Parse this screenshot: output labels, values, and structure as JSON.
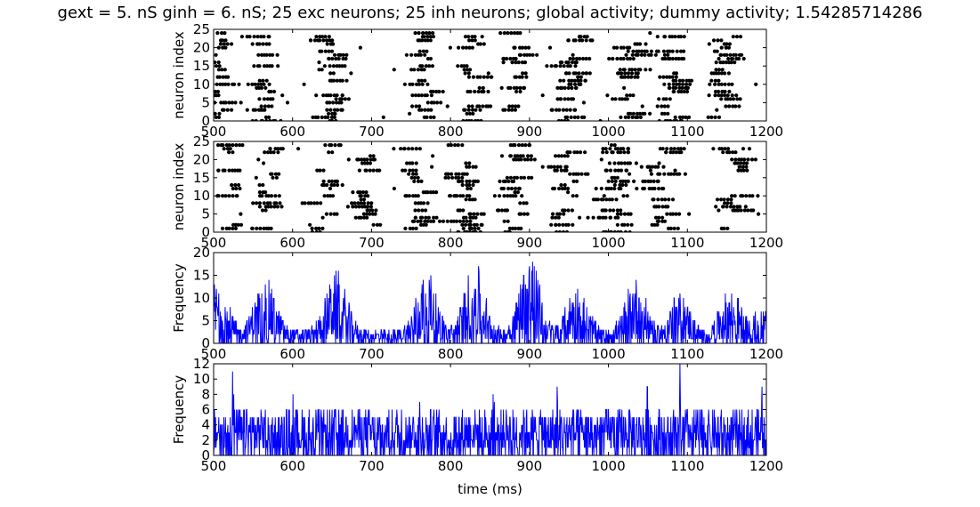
{
  "figure": {
    "title": "gext = 5. nS ginh = 6. nS; 25 exc neurons; 25 inh neurons; global activity; dummy activity; 1.54285714286",
    "xlabel": "time (ms)"
  },
  "colors": {
    "spike": "#000000",
    "rate": "#0000ff",
    "axes": "#000000",
    "background": "#ffffff"
  },
  "chart_data": [
    {
      "type": "scatter",
      "ylabel": "neuron index",
      "xlim": [
        500,
        1200
      ],
      "ylim": [
        0,
        25
      ],
      "xticks": [
        500,
        600,
        700,
        800,
        900,
        1000,
        1100,
        1200
      ],
      "yticks": [
        0,
        5,
        10,
        15,
        20,
        25
      ],
      "grid": false,
      "marker": "dot",
      "series": [
        {
          "neuron_count": 25,
          "time_range": [
            500,
            1200
          ],
          "bursts_ms": [
            505,
            565,
            650,
            770,
            830,
            890,
            955,
            1030,
            1085,
            1150
          ]
        }
      ]
    },
    {
      "type": "scatter",
      "ylabel": "neuron index",
      "xlim": [
        500,
        1200
      ],
      "ylim": [
        0,
        25
      ],
      "xticks": [
        500,
        600,
        700,
        800,
        900,
        1000,
        1100,
        1200
      ],
      "yticks": [
        0,
        5,
        10,
        15,
        20,
        25
      ],
      "grid": false,
      "marker": "dot",
      "series": [
        {
          "neuron_count": 25,
          "time_range": [
            500,
            1200
          ],
          "bursts_ms": [
            520,
            570,
            640,
            700,
            760,
            820,
            880,
            950,
            1010,
            1070,
            1160
          ]
        }
      ]
    },
    {
      "type": "line",
      "ylabel": "Frequency",
      "xlim": [
        500,
        1200
      ],
      "ylim": [
        0,
        20
      ],
      "xticks": [
        500,
        600,
        700,
        800,
        900,
        1000,
        1100,
        1200
      ],
      "yticks": [
        0,
        5,
        10,
        15,
        20
      ],
      "grid": false,
      "series": [
        {
          "baseline": 3,
          "peaks": [
            {
              "t": 505,
              "v": 14
            },
            {
              "t": 565,
              "v": 15
            },
            {
              "t": 655,
              "v": 16
            },
            {
              "t": 770,
              "v": 16
            },
            {
              "t": 830,
              "v": 18
            },
            {
              "t": 900,
              "v": 20
            },
            {
              "t": 960,
              "v": 13
            },
            {
              "t": 1035,
              "v": 15
            },
            {
              "t": 1090,
              "v": 11
            },
            {
              "t": 1155,
              "v": 12
            },
            {
              "t": 1195,
              "v": 8
            }
          ]
        }
      ]
    },
    {
      "type": "line",
      "ylabel": "Frequency",
      "xlim": [
        500,
        1200
      ],
      "ylim": [
        0,
        12
      ],
      "xticks": [
        500,
        600,
        700,
        800,
        900,
        1000,
        1100,
        1200
      ],
      "yticks": [
        0,
        2,
        4,
        6,
        8,
        10,
        12
      ],
      "grid": false,
      "series": [
        {
          "typical_range": [
            0,
            6
          ],
          "peaks": [
            {
              "t": 525,
              "v": 12
            },
            {
              "t": 600,
              "v": 10
            },
            {
              "t": 660,
              "v": 10
            },
            {
              "t": 715,
              "v": 10
            },
            {
              "t": 760,
              "v": 11
            },
            {
              "t": 855,
              "v": 11
            },
            {
              "t": 935,
              "v": 10
            },
            {
              "t": 1050,
              "v": 10
            },
            {
              "t": 1090,
              "v": 12
            },
            {
              "t": 1195,
              "v": 11
            }
          ]
        }
      ]
    }
  ]
}
